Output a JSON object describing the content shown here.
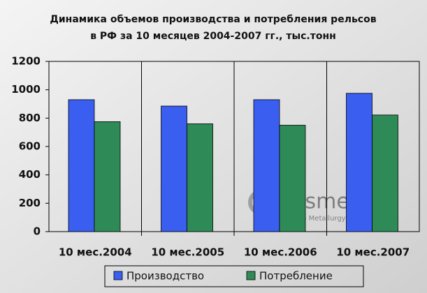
{
  "chart_data": {
    "type": "bar",
    "title": [
      "Динамика объемов производства и потребления рельсов",
      "в РФ за 10 месяцев 2004-2007 гг., тыс.тонн"
    ],
    "categories": [
      "10 мес.2004",
      "10 мес.2005",
      "10 мес.2006",
      "10 мес.2007"
    ],
    "series": [
      {
        "name": "Производство",
        "color": "#3a5ff0",
        "values": [
          930,
          885,
          930,
          975
        ]
      },
      {
        "name": "Потребление",
        "color": "#2e8b57",
        "values": [
          775,
          760,
          750,
          822
        ]
      }
    ],
    "ylim": [
      0,
      1200
    ],
    "yticks": [
      0,
      200,
      400,
      600,
      800,
      1000,
      1200
    ],
    "legend": "bottom",
    "watermark": [
      "Rusmet.ru",
      "Russian Metallurgy and World"
    ]
  }
}
